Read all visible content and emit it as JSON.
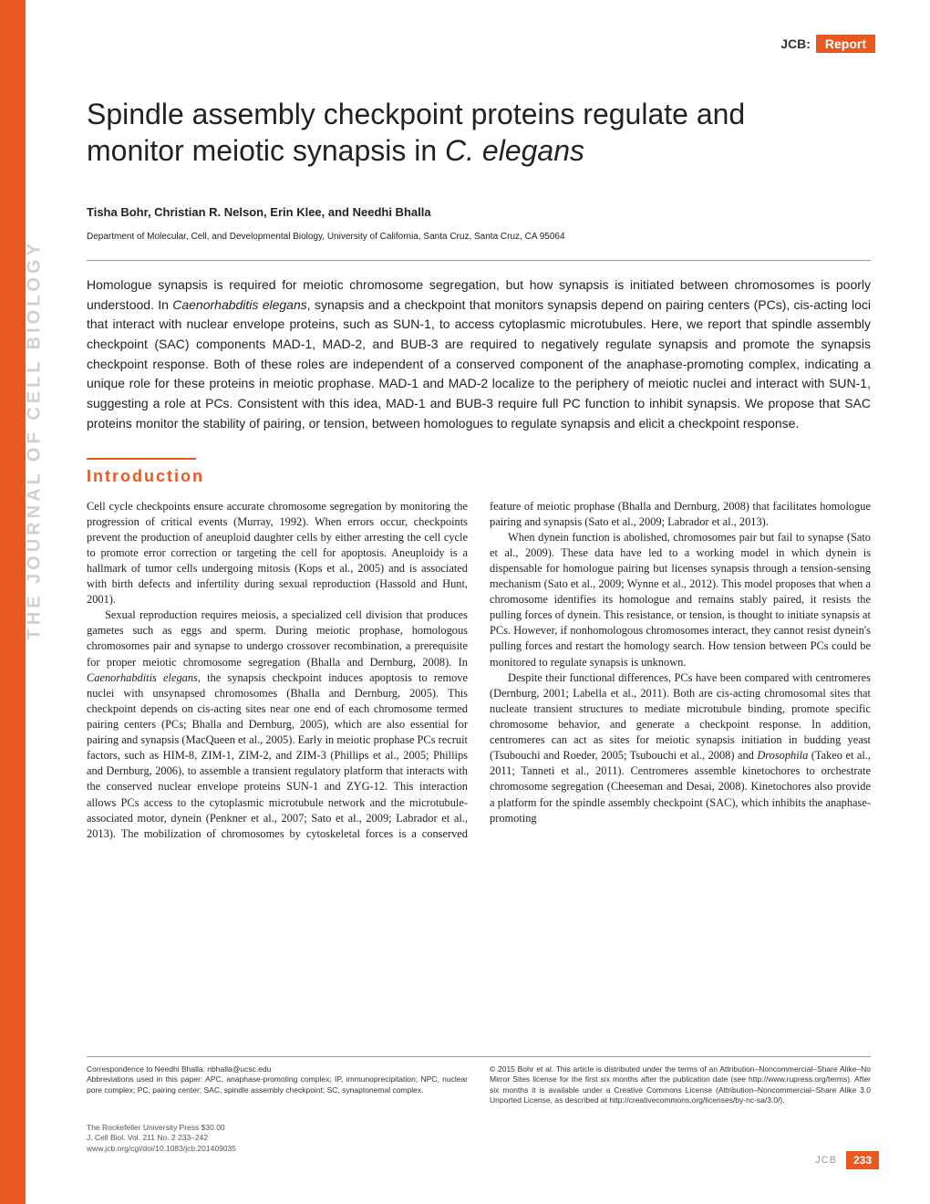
{
  "header": {
    "jcb": "JCB:",
    "label": "Report"
  },
  "title_line1": "Spindle assembly checkpoint proteins regulate and",
  "title_line2": "monitor meiotic synapsis in ",
  "title_species": "C. elegans",
  "authors": "Tisha Bohr, Christian R. Nelson, Erin Klee, and Needhi Bhalla",
  "affiliation": "Department of Molecular, Cell, and Developmental Biology, University of California, Santa Cruz, Santa Cruz, CA 95064",
  "abstract_p1": "Homologue synapsis is required for meiotic chromosome segregation, but how synapsis is initiated between chromosomes is poorly understood. In ",
  "abstract_sp1": "Caenorhabditis elegans",
  "abstract_p2": ", synapsis and a checkpoint that monitors synapsis depend on pairing centers (PCs), cis-acting loci that interact with nuclear envelope proteins, such as SUN-1, to access cytoplasmic microtubules. Here, we report that spindle assembly checkpoint (SAC) components MAD-1, MAD-2, and BUB-3 are required to negatively regulate synapsis and promote the synapsis checkpoint response. Both of these roles are independent of a conserved component of the anaphase-promoting complex, indicating a unique role for these proteins in meiotic prophase. MAD-1 and MAD-2 localize to the periphery of meiotic nuclei and interact with SUN-1, suggesting a role at PCs. Consistent with this idea, MAD-1 and BUB-3 require full PC function to inhibit synapsis. We propose that SAC proteins monitor the stability of pairing, or tension, between homologues to regulate synapsis and elicit a checkpoint response.",
  "section_heading": "Introduction",
  "body_p1": "Cell cycle checkpoints ensure accurate chromosome segregation by monitoring the progression of critical events (Murray, 1992). When errors occur, checkpoints prevent the production of aneuploid daughter cells by either arresting the cell cycle to promote error correction or targeting the cell for apoptosis. Aneuploidy is a hallmark of tumor cells undergoing mitosis (Kops et al., 2005) and is associated with birth defects and infertility during sexual reproduction (Hassold and Hunt, 2001).",
  "body_p2a": "Sexual reproduction requires meiosis, a specialized cell division that produces gametes such as eggs and sperm. During meiotic prophase, homologous chromosomes pair and synapse to undergo crossover recombination, a prerequisite for proper meiotic chromosome segregation (Bhalla and Dernburg, 2008). In ",
  "body_sp1": "Caenorhabditis elegans",
  "body_p2b": ", the synapsis checkpoint induces apoptosis to remove nuclei with unsynapsed chromosomes (Bhalla and Dernburg, 2005). This checkpoint depends on cis-acting sites near one end of each chromosome termed pairing centers (PCs; Bhalla and Dernburg, 2005), which are also essential for pairing and synapsis (MacQueen et al., 2005). Early in meiotic prophase PCs recruit factors, such as HIM-8, ZIM-1, ZIM-2, and ZIM-3 (Phillips et al., 2005; Phillips and Dernburg, 2006), to assemble a transient regulatory platform that interacts with the conserved nuclear envelope proteins SUN-1 and ZYG-12. This interaction allows PCs access to the cytoplasmic microtubule network and the microtubule-associated motor, dynein (Penkner et al., 2007; Sato et al., 2009; Labrador et al., 2013). The mobilization of chromosomes by cytoskeletal forces is a conserved feature of meiotic prophase (Bhalla and Dernburg, 2008) that facilitates homologue pairing and synapsis (Sato et al., 2009; Labrador et al., 2013).",
  "body_p3": "When dynein function is abolished, chromosomes pair but fail to synapse (Sato et al., 2009). These data have led to a working model in which dynein is dispensable for homologue pairing but licenses synapsis through a tension-sensing mechanism (Sato et al., 2009; Wynne et al., 2012). This model proposes that when a chromosome identifies its homologue and remains stably paired, it resists the pulling forces of dynein. This resistance, or tension, is thought to initiate synapsis at PCs. However, if nonhomologous chromosomes interact, they cannot resist dynein's pulling forces and restart the homology search. How tension between PCs could be monitored to regulate synapsis is unknown.",
  "body_p4a": "Despite their functional differences, PCs have been compared with centromeres (Dernburg, 2001; Labella et al., 2011). Both are cis-acting chromosomal sites that nucleate transient structures to mediate microtubule binding, promote specific chromosome behavior, and generate a checkpoint response. In addition, centromeres can act as sites for meiotic synapsis initiation in budding yeast (Tsubouchi and Roeder, 2005; Tsubouchi et al., 2008) and ",
  "body_sp2": "Drosophila",
  "body_p4b": " (Takeo et al., 2011; Tanneti et al., 2011). Centromeres assemble kinetochores to orchestrate chromosome segregation (Cheeseman and Desai, 2008). Kinetochores also provide a platform for the spindle assembly checkpoint (SAC), which inhibits the anaphase-promoting",
  "vertical_label": "THE JOURNAL OF CELL BIOLOGY",
  "footer": {
    "correspondence": "Correspondence to Needhi Bhalla: nbhalla@ucsc.edu",
    "abbreviations": "Abbreviations used in this paper: APC, anaphase-promoting complex; IP, immunoprecipitation; NPC, nuclear pore complex; PC, pairing center; SAC, spindle assembly checkpoint; SC, synaptonemal complex.",
    "copyright": "© 2015 Bohr et al. This article is distributed under the terms of an Attribution–Noncommercial–Share Alike–No Mirror Sites license for the first six months after the publication date (see http://www.rupress.org/terms). After six months it is available under a Creative Commons License (Attribution–Noncommercial–Share Alike 3.0 Unported License, as described at http://creativecommons.org/licenses/by-nc-sa/3.0/).",
    "publisher": "The Rockefeller University Press   $30.00",
    "citation": "J. Cell Biol. Vol. 211 No. 2  233–242",
    "doi": "www.jcb.org/cgi/doi/10.1083/jcb.201409035"
  },
  "page_footer": {
    "jcb": "JCB",
    "number": "233"
  },
  "colors": {
    "accent": "#e85921",
    "sidebar_text": "#d0d0d0"
  }
}
